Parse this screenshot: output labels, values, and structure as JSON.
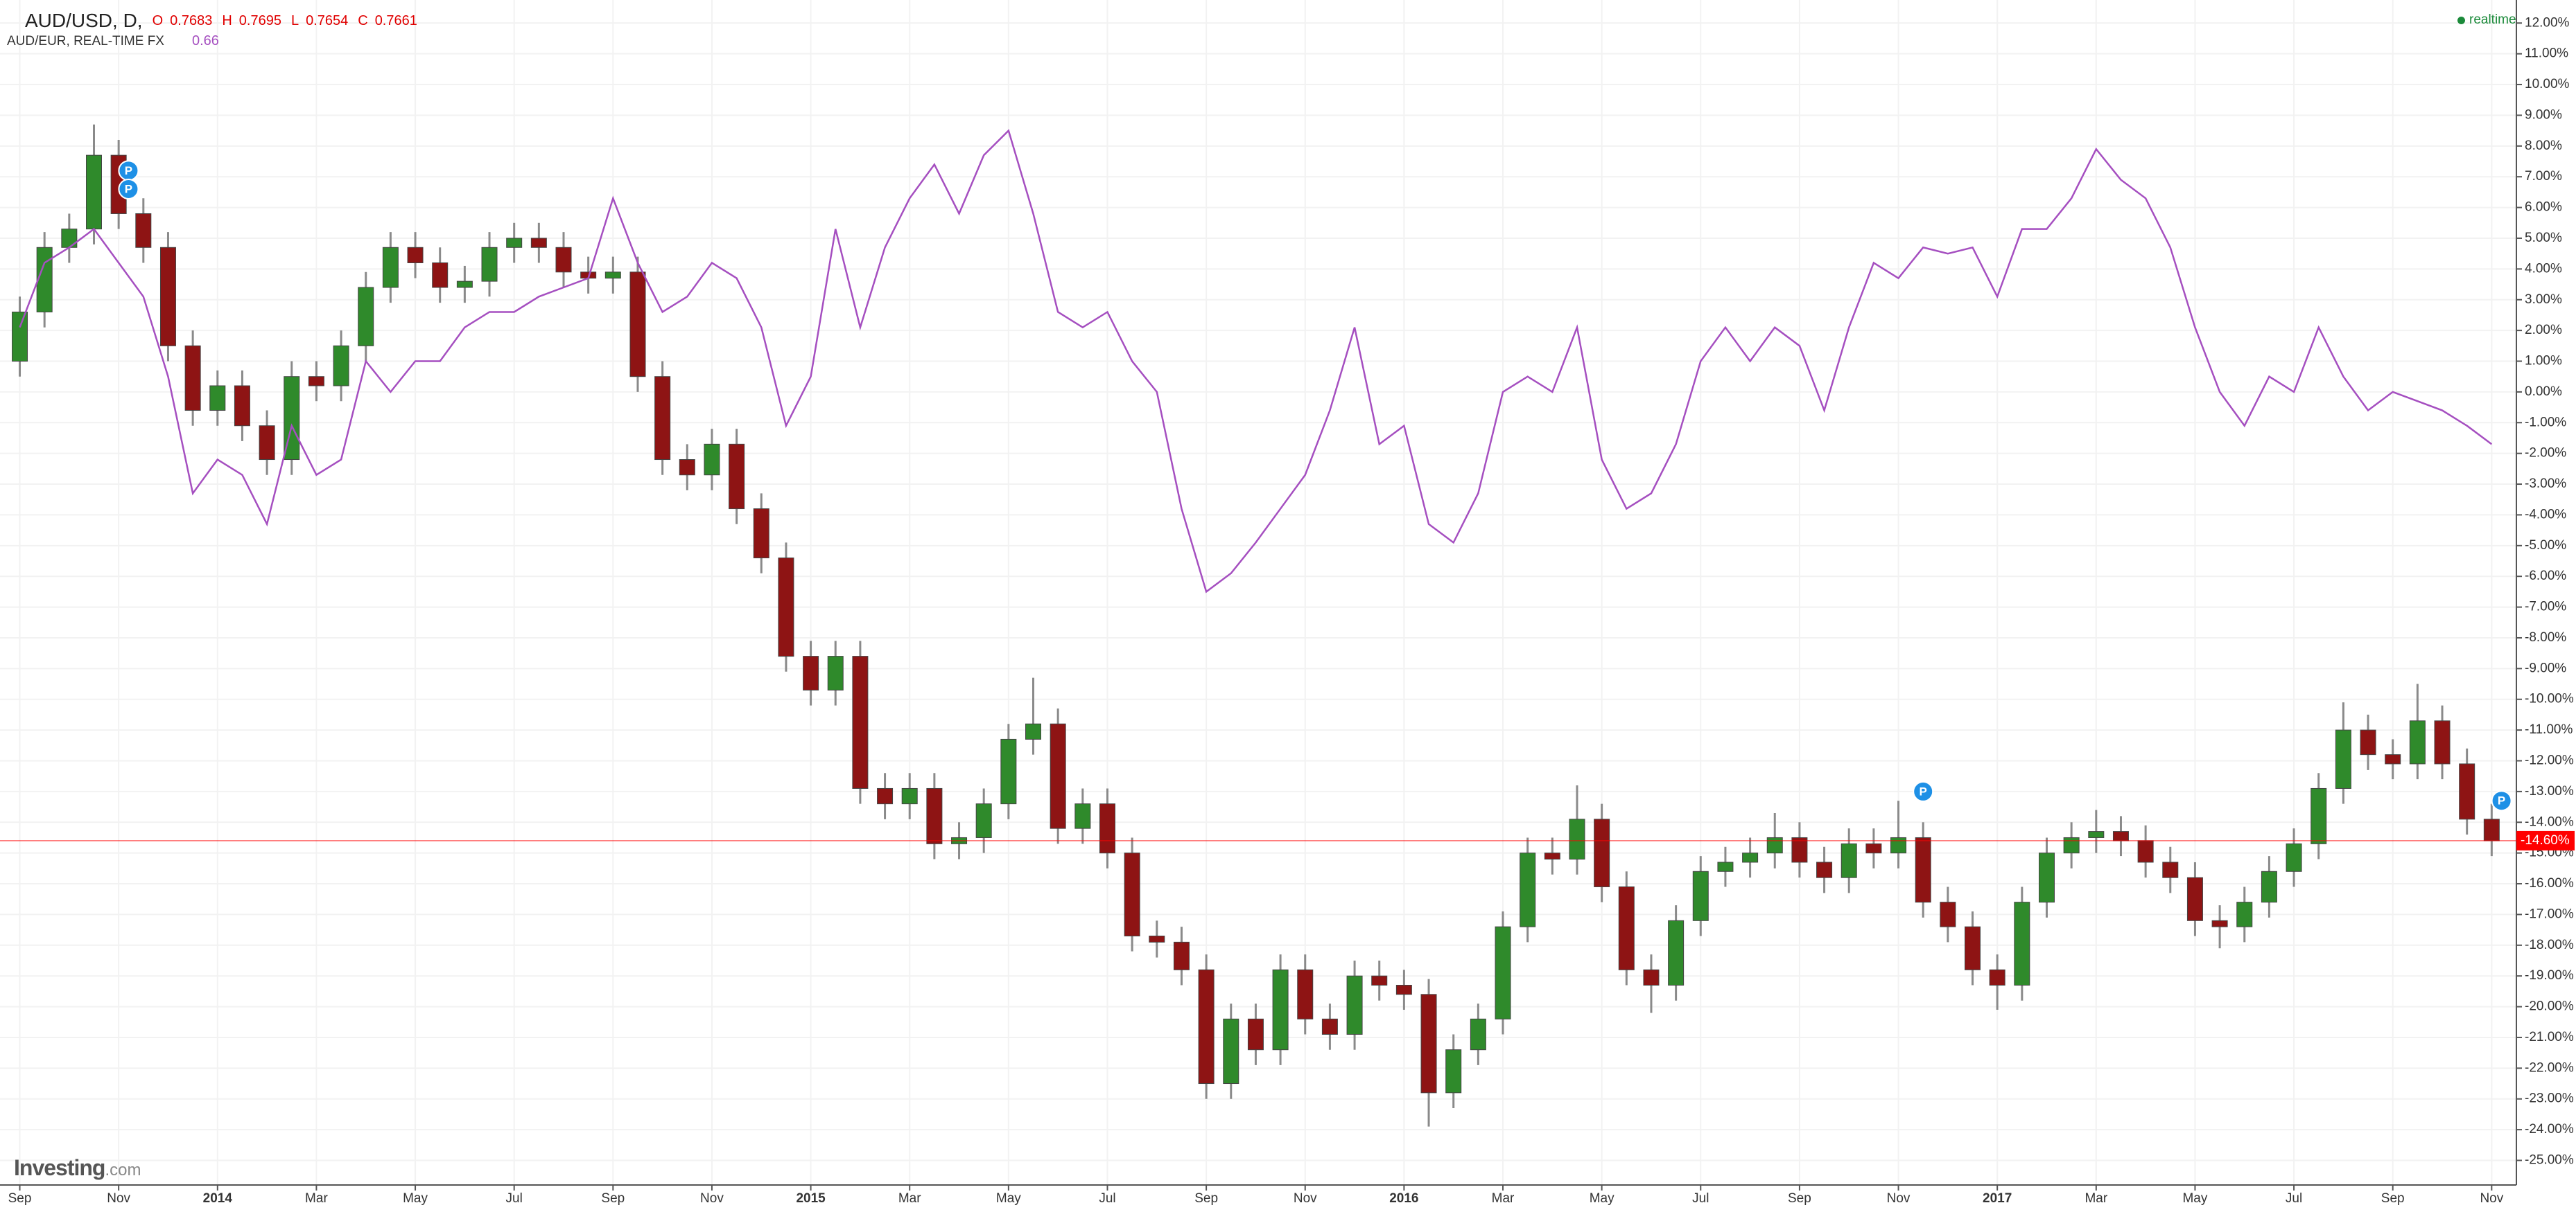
{
  "chart_data": {
    "type": "candlestick",
    "x": [
      0,
      0.5,
      1,
      1.5,
      2,
      2.5,
      3,
      3.5,
      4,
      4.5,
      5,
      5.5,
      6,
      6.5,
      7,
      7.5,
      8,
      8.5,
      9,
      9.5,
      10,
      10.5,
      11,
      11.5,
      12,
      12.5,
      13,
      13.5,
      14,
      14.5,
      15,
      15.5,
      16,
      16.5,
      17,
      17.5,
      18,
      18.5,
      19,
      19.5,
      20,
      20.5,
      21,
      21.5,
      22,
      22.5,
      23,
      23.5,
      24,
      24.5,
      25,
      25.5,
      26,
      26.5,
      27,
      27.5,
      28,
      28.5,
      29,
      29.5,
      30,
      30.5,
      31,
      31.5,
      32,
      32.5,
      33,
      33.5,
      34,
      34.5,
      35,
      35.5,
      36,
      36.5,
      37,
      37.5,
      38,
      38.5,
      39,
      39.5,
      40,
      40.5,
      41,
      41.5,
      42,
      42.5,
      43,
      43.5,
      44,
      44.5,
      45,
      45.5,
      46,
      46.5,
      47,
      47.5,
      48,
      48.5,
      49,
      49.5,
      50
    ],
    "series": [
      {
        "name": "AUD/USD, D,",
        "type": "candlestick",
        "colors": {
          "up": "#2f8a2b",
          "down": "#8e1414",
          "wick": "#8a8a8a"
        },
        "open": [
          1.0,
          2.6,
          4.7,
          5.3,
          7.7,
          5.8,
          4.7,
          1.5,
          -0.6,
          0.2,
          -1.1,
          -2.2,
          0.5,
          0.2,
          1.5,
          3.4,
          4.7,
          4.2,
          3.4,
          3.6,
          4.7,
          5.0,
          4.7,
          3.9,
          3.7,
          3.9,
          0.5,
          -2.2,
          -2.7,
          -1.7,
          -3.8,
          -5.4,
          -8.6,
          -9.7,
          -8.6,
          -12.9,
          -13.4,
          -12.9,
          -14.7,
          -14.5,
          -13.4,
          -11.3,
          -10.8,
          -14.2,
          -13.4,
          -15.0,
          -17.7,
          -17.9,
          -18.8,
          -22.5,
          -20.4,
          -21.4,
          -18.8,
          -20.4,
          -20.9,
          -19.0,
          -19.3,
          -19.6,
          -22.8,
          -21.4,
          -20.4,
          -17.4,
          -15.0,
          -15.2,
          -13.9,
          -16.1,
          -18.8,
          -19.3,
          -17.2,
          -15.6,
          -15.3,
          -15.0,
          -14.5,
          -15.3,
          -15.8,
          -14.7,
          -15.0,
          -14.5,
          -16.6,
          -17.4,
          -18.8,
          -19.3,
          -16.6,
          -15.0,
          -14.5,
          -14.3,
          -14.6,
          -15.3,
          -15.8,
          -17.2,
          -17.4,
          -16.6,
          -15.6,
          -14.7,
          -12.9,
          -11.0,
          -11.8,
          -12.1,
          -10.7,
          -12.1,
          -13.9
        ],
        "high": [
          3.1,
          5.2,
          5.8,
          8.7,
          8.2,
          6.3,
          5.2,
          2.0,
          0.7,
          0.7,
          -0.6,
          1.0,
          1.0,
          2.0,
          3.9,
          5.2,
          5.2,
          4.7,
          4.1,
          5.2,
          5.5,
          5.5,
          5.2,
          4.4,
          4.4,
          4.4,
          1.0,
          -1.7,
          -1.2,
          -1.2,
          -3.3,
          -4.9,
          -8.1,
          -8.1,
          -8.1,
          -12.4,
          -12.4,
          -12.4,
          -14.0,
          -12.9,
          -10.8,
          -9.3,
          -10.3,
          -12.9,
          -12.9,
          -14.5,
          -17.2,
          -17.4,
          -18.3,
          -19.9,
          -19.9,
          -18.3,
          -18.3,
          -19.9,
          -18.5,
          -18.5,
          -18.8,
          -19.1,
          -20.9,
          -19.9,
          -16.9,
          -14.5,
          -14.5,
          -12.8,
          -13.4,
          -15.6,
          -18.3,
          -16.7,
          -15.1,
          -14.8,
          -14.5,
          -13.7,
          -14.0,
          -14.8,
          -14.2,
          -14.2,
          -13.3,
          -14.0,
          -16.1,
          -16.9,
          -18.3,
          -16.1,
          -14.5,
          -14.0,
          -13.6,
          -13.8,
          -14.1,
          -14.8,
          -15.3,
          -16.7,
          -16.1,
          -15.1,
          -14.2,
          -12.4,
          -10.1,
          -10.5,
          -11.3,
          -9.5,
          -10.2,
          -11.6,
          -13.4
        ],
        "low": [
          0.5,
          2.1,
          4.2,
          4.8,
          5.3,
          4.2,
          1.0,
          -1.1,
          -1.1,
          -1.6,
          -2.7,
          -2.7,
          -0.3,
          -0.3,
          1.0,
          2.9,
          3.7,
          2.9,
          2.9,
          3.1,
          4.2,
          4.2,
          3.4,
          3.2,
          3.2,
          0.0,
          -2.7,
          -3.2,
          -3.2,
          -4.3,
          -5.9,
          -9.1,
          -10.2,
          -10.2,
          -13.4,
          -13.9,
          -13.9,
          -15.2,
          -15.2,
          -15.0,
          -13.9,
          -11.8,
          -14.7,
          -14.7,
          -15.5,
          -18.2,
          -18.4,
          -19.3,
          -23.0,
          -23.0,
          -21.9,
          -21.9,
          -20.9,
          -21.4,
          -21.4,
          -19.8,
          -20.1,
          -23.9,
          -23.3,
          -21.9,
          -20.9,
          -17.9,
          -15.7,
          -15.7,
          -16.6,
          -19.3,
          -20.2,
          -19.8,
          -17.7,
          -16.1,
          -15.8,
          -15.5,
          -15.8,
          -16.3,
          -16.3,
          -15.5,
          -15.5,
          -17.1,
          -17.9,
          -19.3,
          -20.1,
          -19.8,
          -17.1,
          -15.5,
          -15.0,
          -15.1,
          -15.8,
          -16.3,
          -17.7,
          -18.1,
          -17.9,
          -17.1,
          -16.1,
          -15.2,
          -13.4,
          -12.3,
          -12.6,
          -12.6,
          -12.6,
          -14.4,
          -15.1
        ],
        "close": [
          2.6,
          4.7,
          5.3,
          7.7,
          5.8,
          4.7,
          1.5,
          -0.6,
          0.2,
          -1.1,
          -2.2,
          0.5,
          0.2,
          1.5,
          3.4,
          4.7,
          4.2,
          3.4,
          3.6,
          4.7,
          5.0,
          4.7,
          3.9,
          3.7,
          3.9,
          0.5,
          -2.2,
          -2.7,
          -1.7,
          -3.8,
          -5.4,
          -8.6,
          -9.7,
          -8.6,
          -12.9,
          -13.4,
          -12.9,
          -14.7,
          -14.5,
          -13.4,
          -11.3,
          -10.8,
          -14.2,
          -13.4,
          -15.0,
          -17.7,
          -17.9,
          -18.8,
          -22.5,
          -20.4,
          -21.4,
          -18.8,
          -20.4,
          -20.9,
          -19.0,
          -19.3,
          -19.6,
          -22.8,
          -21.4,
          -20.4,
          -17.4,
          -15.0,
          -15.2,
          -13.9,
          -16.1,
          -18.8,
          -19.3,
          -17.2,
          -15.6,
          -15.3,
          -15.0,
          -14.5,
          -15.3,
          -15.8,
          -14.7,
          -15.0,
          -14.5,
          -16.6,
          -17.4,
          -18.8,
          -19.3,
          -16.6,
          -15.0,
          -14.5,
          -14.3,
          -14.6,
          -15.3,
          -15.8,
          -17.2,
          -17.4,
          -16.6,
          -15.6,
          -14.7,
          -12.9,
          -11.0,
          -11.8,
          -12.1,
          -10.7,
          -12.1,
          -13.9,
          -14.6
        ]
      },
      {
        "name": "AUD/EUR, REAL-TIME FX",
        "type": "line",
        "color": "#a54fc0",
        "last": 0.66,
        "values": [
          2.1,
          4.2,
          4.7,
          5.3,
          4.2,
          3.1,
          0.5,
          -3.3,
          -2.2,
          -2.7,
          -4.3,
          -1.1,
          -2.7,
          -2.2,
          1.0,
          0.0,
          1.0,
          1.0,
          2.1,
          2.6,
          2.6,
          3.1,
          3.4,
          3.7,
          6.3,
          4.2,
          2.6,
          3.1,
          4.2,
          3.7,
          2.1,
          -1.1,
          0.5,
          5.3,
          2.1,
          4.7,
          6.3,
          7.4,
          5.8,
          7.7,
          8.5,
          5.8,
          2.6,
          2.1,
          2.6,
          1.0,
          0.0,
          -3.8,
          -6.5,
          -5.9,
          -4.9,
          -3.8,
          -2.7,
          -0.6,
          2.1,
          -1.7,
          -1.1,
          -4.3,
          -4.9,
          -3.3,
          0.0,
          0.5,
          0.0,
          2.1,
          -2.2,
          -3.8,
          -3.3,
          -1.7,
          1.0,
          2.1,
          1.0,
          2.1,
          1.5,
          -0.6,
          2.1,
          4.2,
          3.7,
          4.7,
          4.5,
          4.7,
          3.1,
          5.3,
          5.3,
          6.3,
          7.9,
          6.9,
          6.3,
          4.7,
          2.1,
          0.0,
          -1.1,
          0.5,
          0.0,
          2.1,
          0.5,
          -0.6,
          0.0,
          -0.3,
          -0.6,
          -1.1,
          -1.7
        ]
      }
    ],
    "quote": [
      {
        "key": "O",
        "value": 0.7683
      },
      {
        "key": "H",
        "value": 0.7695
      },
      {
        "key": "L",
        "value": 0.7654
      },
      {
        "key": "C",
        "value": 0.7661
      }
    ],
    "xlim": [
      -0.4,
      50.5
    ],
    "xticks": [
      {
        "value": 0,
        "label": "Sep"
      },
      {
        "value": 2,
        "label": "Nov"
      },
      {
        "value": 4,
        "label": "2014"
      },
      {
        "value": 6,
        "label": "Mar"
      },
      {
        "value": 8,
        "label": "May"
      },
      {
        "value": 10,
        "label": "Jul"
      },
      {
        "value": 12,
        "label": "Sep"
      },
      {
        "value": 14,
        "label": "Nov"
      },
      {
        "value": 16,
        "label": "2015"
      },
      {
        "value": 18,
        "label": "Mar"
      },
      {
        "value": 20,
        "label": "May"
      },
      {
        "value": 22,
        "label": "Jul"
      },
      {
        "value": 24,
        "label": "Sep"
      },
      {
        "value": 26,
        "label": "Nov"
      },
      {
        "value": 28,
        "label": "2016"
      },
      {
        "value": 30,
        "label": "Mar"
      },
      {
        "value": 32,
        "label": "May"
      },
      {
        "value": 34,
        "label": "Jul"
      },
      {
        "value": 36,
        "label": "Sep"
      },
      {
        "value": 38,
        "label": "Nov"
      },
      {
        "value": 40,
        "label": "2017"
      },
      {
        "value": 42,
        "label": "Mar"
      },
      {
        "value": 44,
        "label": "May"
      },
      {
        "value": 46,
        "label": "Jul"
      },
      {
        "value": 48,
        "label": "Sep"
      },
      {
        "value": 50,
        "label": "Nov"
      }
    ],
    "ylim": [
      -25.8,
      12.75
    ],
    "yticks": [
      {
        "value": 12,
        "label": "12.00%"
      },
      {
        "value": 11,
        "label": "11.00%"
      },
      {
        "value": 10,
        "label": "10.00%"
      },
      {
        "value": 9,
        "label": "9.00%"
      },
      {
        "value": 8,
        "label": "8.00%"
      },
      {
        "value": 7,
        "label": "7.00%"
      },
      {
        "value": 6,
        "label": "6.00%"
      },
      {
        "value": 5,
        "label": "5.00%"
      },
      {
        "value": 4,
        "label": "4.00%"
      },
      {
        "value": 3,
        "label": "3.00%"
      },
      {
        "value": 2,
        "label": "2.00%"
      },
      {
        "value": 1,
        "label": "1.00%"
      },
      {
        "value": 0,
        "label": "0.00%"
      },
      {
        "value": -1,
        "label": "-1.00%"
      },
      {
        "value": -2,
        "label": "-2.00%"
      },
      {
        "value": -3,
        "label": "-3.00%"
      },
      {
        "value": -4,
        "label": "-4.00%"
      },
      {
        "value": -5,
        "label": "-5.00%"
      },
      {
        "value": -6,
        "label": "-6.00%"
      },
      {
        "value": -7,
        "label": "-7.00%"
      },
      {
        "value": -8,
        "label": "-8.00%"
      },
      {
        "value": -9,
        "label": "-9.00%"
      },
      {
        "value": -10,
        "label": "-10.00%"
      },
      {
        "value": -11,
        "label": "-11.00%"
      },
      {
        "value": -12,
        "label": "-12.00%"
      },
      {
        "value": -13,
        "label": "-13.00%"
      },
      {
        "value": -14,
        "label": "-14.00%"
      },
      {
        "value": -15,
        "label": "-15.00%"
      },
      {
        "value": -16,
        "label": "-16.00%"
      },
      {
        "value": -17,
        "label": "-17.00%"
      },
      {
        "value": -18,
        "label": "-18.00%"
      },
      {
        "value": -19,
        "label": "-19.00%"
      },
      {
        "value": -20,
        "label": "-20.00%"
      },
      {
        "value": -21,
        "label": "-21.00%"
      },
      {
        "value": -22,
        "label": "-22.00%"
      },
      {
        "value": -23,
        "label": "-23.00%"
      },
      {
        "value": -24,
        "label": "-24.00%"
      },
      {
        "value": -25,
        "label": "-25.00%"
      }
    ],
    "last_value": {
      "value": -14.6,
      "label": "-14.60%",
      "color": "#ff0000"
    },
    "markers": [
      {
        "x": 2.2,
        "y": 7.2,
        "label": "P"
      },
      {
        "x": 2.2,
        "y": 6.6,
        "label": "P"
      },
      {
        "x": 38.5,
        "y": -13.0,
        "label": "P"
      },
      {
        "x": 50.2,
        "y": -13.3,
        "label": "P"
      }
    ],
    "status": "realtime",
    "watermark": [
      "Investing",
      ".com"
    ],
    "grid": true
  }
}
